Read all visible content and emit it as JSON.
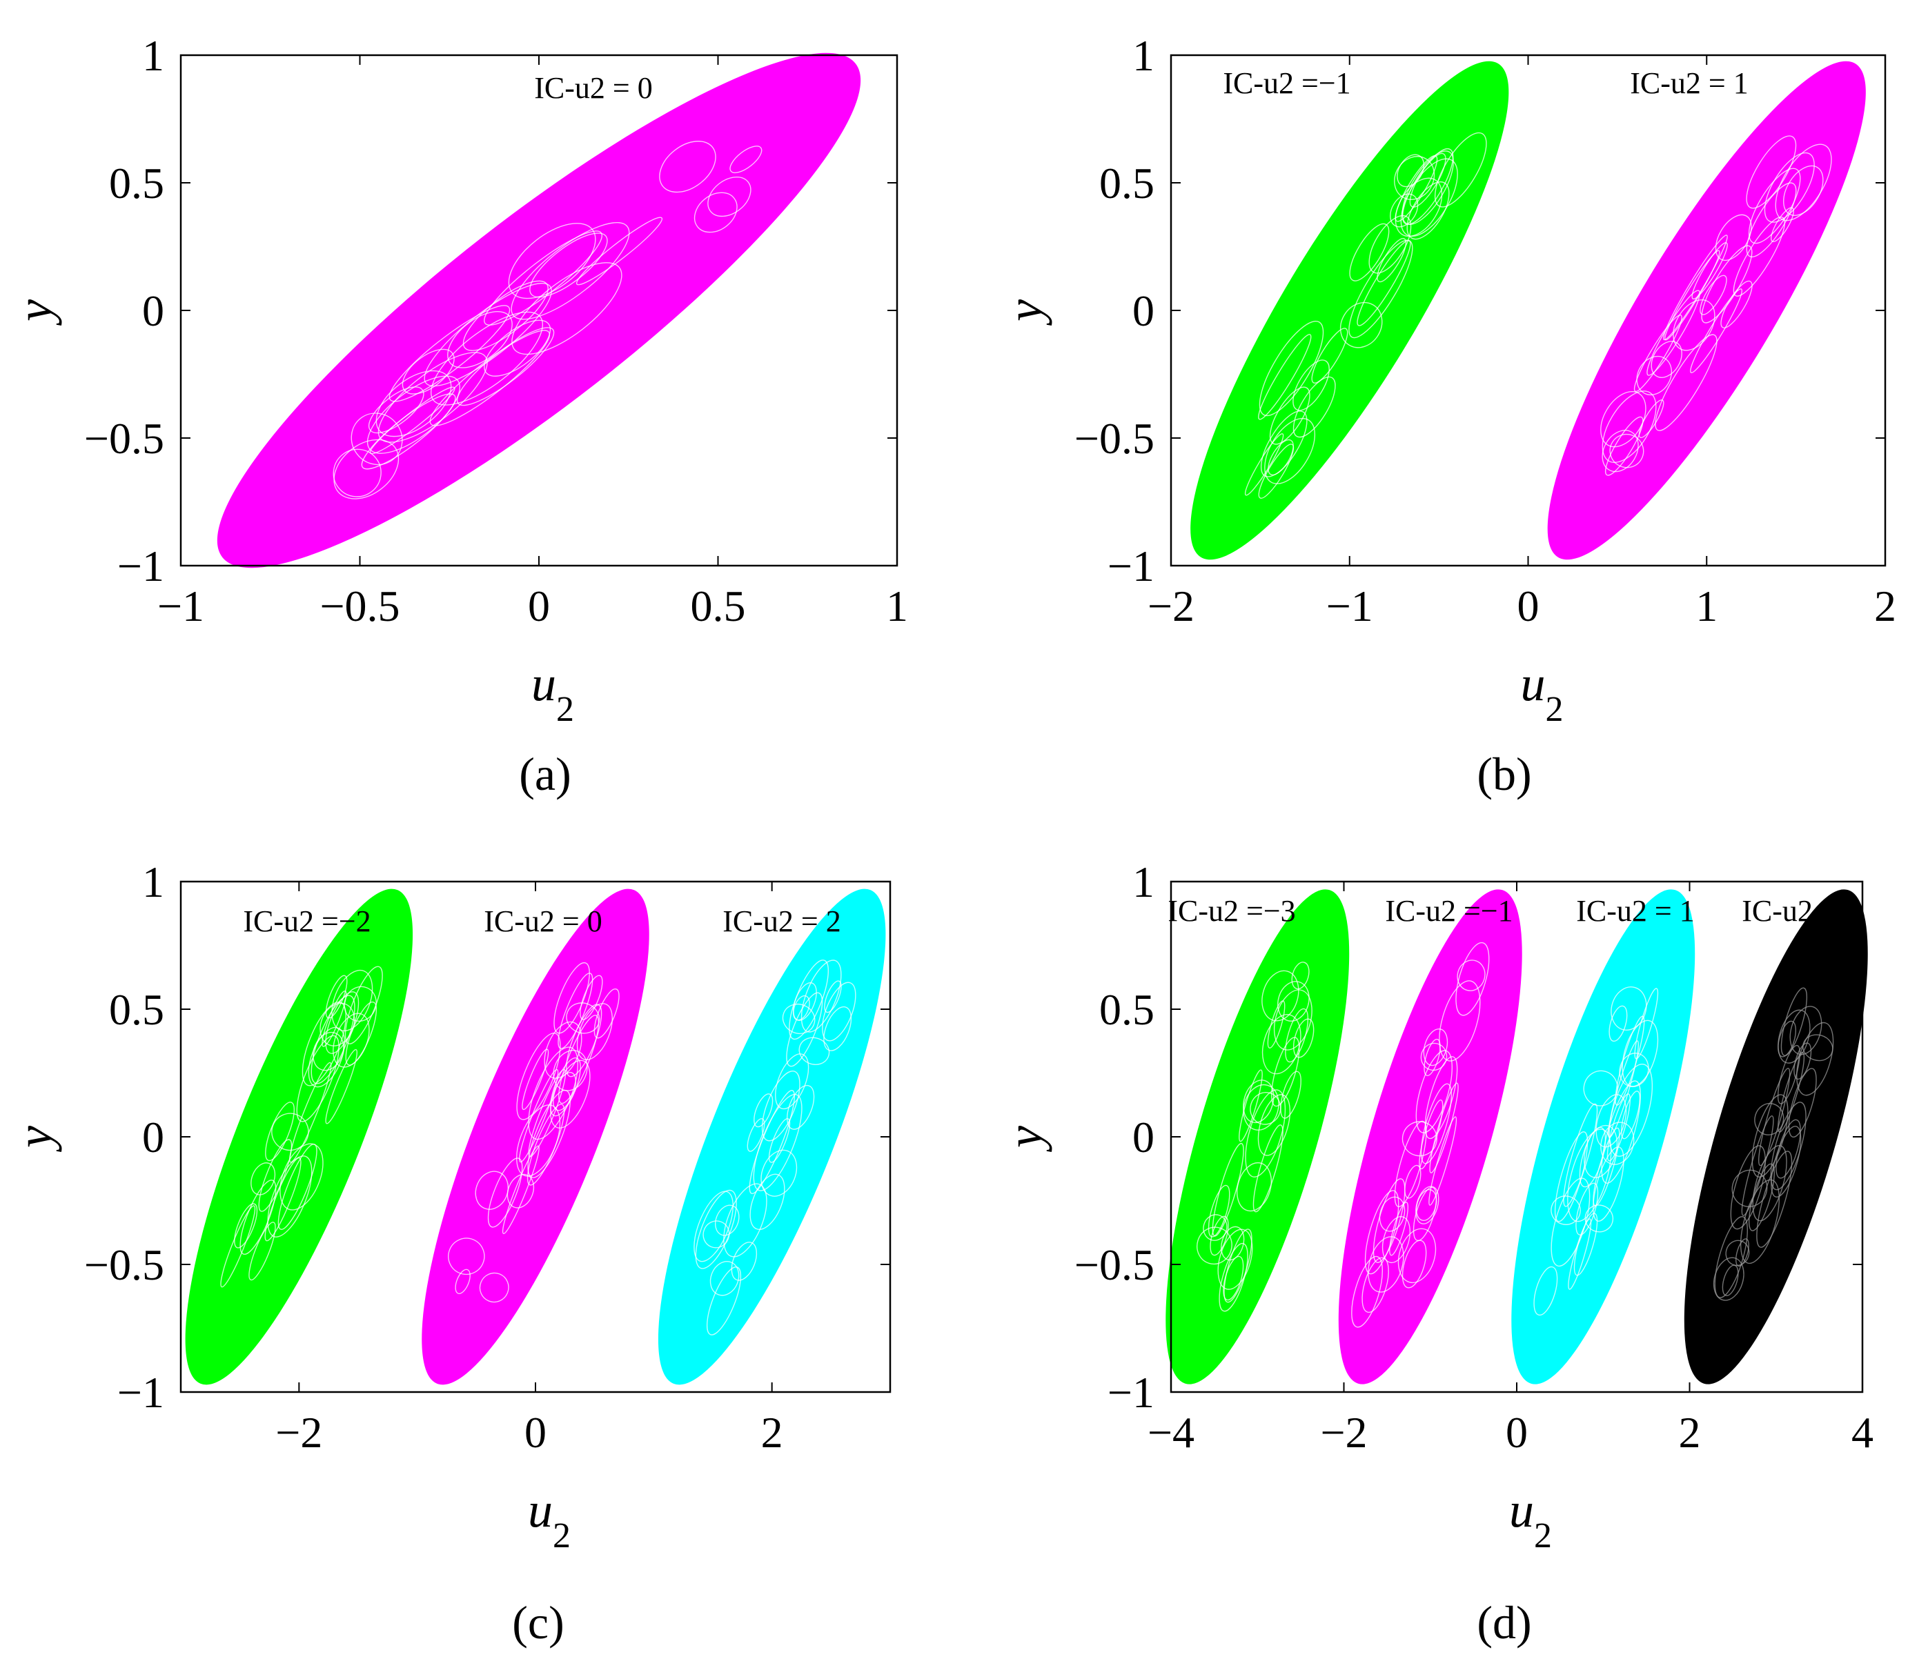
{
  "chart_data": [
    {
      "type": "scatter",
      "panel_label": "(a)",
      "xlabel": "u",
      "xlabel_sub": "2",
      "ylabel": "y",
      "xlim": [
        -1,
        1
      ],
      "ylim": [
        -1,
        1
      ],
      "xticks": [
        -1,
        -0.5,
        0,
        0.5,
        1
      ],
      "xtick_labels": [
        "−1",
        "−0.5",
        "0",
        "0.5",
        "1"
      ],
      "yticks": [
        1,
        0.5,
        0,
        -0.5,
        -1
      ],
      "ytick_labels": [
        "1",
        "0.5",
        "0",
        "−0.5",
        "−1"
      ],
      "grid": false,
      "series": [
        {
          "annotation": "IC-u2 = 0",
          "color": "#ff00ff",
          "x_range": [
            -0.85,
            0.85
          ],
          "y_range": [
            -0.93,
            0.93
          ]
        }
      ]
    },
    {
      "type": "scatter",
      "panel_label": "(b)",
      "xlabel": "u",
      "xlabel_sub": "2",
      "ylabel": "y",
      "xlim": [
        -2,
        2
      ],
      "ylim": [
        -1,
        1
      ],
      "xticks": [
        -2,
        -1,
        0,
        1,
        2
      ],
      "xtick_labels": [
        "−2",
        "−1",
        "0",
        "1",
        "2"
      ],
      "yticks": [
        1,
        0.5,
        0,
        -0.5,
        -1
      ],
      "ytick_labels": [
        "1",
        "0.5",
        "0",
        "−0.5",
        "−1"
      ],
      "grid": false,
      "series": [
        {
          "annotation": "IC-u2 =−1",
          "color": "#00ff00",
          "x_range": [
            -1.8,
            -0.2
          ],
          "y_range": [
            -0.93,
            0.93
          ]
        },
        {
          "annotation": "IC-u2 = 1",
          "color": "#ff00ff",
          "x_range": [
            0.2,
            1.8
          ],
          "y_range": [
            -0.93,
            0.93
          ]
        }
      ]
    },
    {
      "type": "scatter",
      "panel_label": "(c)",
      "xlabel": "u",
      "xlabel_sub": "2",
      "ylabel": "y",
      "xlim": [
        -3,
        3
      ],
      "ylim": [
        -1,
        1
      ],
      "xticks": [
        -2,
        0,
        2
      ],
      "xtick_labels": [
        "−2",
        "0",
        "2"
      ],
      "yticks": [
        1,
        0.5,
        0,
        -0.5,
        -1
      ],
      "ytick_labels": [
        "1",
        "0.5",
        "0",
        "−0.5",
        "−1"
      ],
      "grid": false,
      "series": [
        {
          "annotation": "IC-u2 =−2",
          "color": "#00ff00",
          "x_range": [
            -2.8,
            -1.2
          ],
          "y_range": [
            -0.93,
            0.93
          ]
        },
        {
          "annotation": "IC-u2 = 0",
          "color": "#ff00ff",
          "x_range": [
            -0.8,
            0.8
          ],
          "y_range": [
            -0.93,
            0.93
          ]
        },
        {
          "annotation": "IC-u2 = 2",
          "color": "#00ffff",
          "x_range": [
            1.2,
            2.8
          ],
          "y_range": [
            -0.93,
            0.93
          ]
        }
      ]
    },
    {
      "type": "scatter",
      "panel_label": "(d)",
      "xlabel": "u",
      "xlabel_sub": "2",
      "ylabel": "y",
      "xlim": [
        -4,
        4
      ],
      "ylim": [
        -1,
        1
      ],
      "xticks": [
        -4,
        -2,
        0,
        2,
        4
      ],
      "xtick_labels": [
        "−4",
        "−2",
        "0",
        "2",
        "4"
      ],
      "yticks": [
        1,
        0.5,
        0,
        -0.5,
        -1
      ],
      "ytick_labels": [
        "1",
        "0.5",
        "0",
        "−0.5",
        "−1"
      ],
      "grid": false,
      "series": [
        {
          "annotation": "IC-u2 =−3",
          "color": "#00ff00",
          "x_range": [
            -3.8,
            -2.2
          ],
          "y_range": [
            -0.93,
            0.93
          ]
        },
        {
          "annotation": "IC-u2 =−1",
          "color": "#ff00ff",
          "x_range": [
            -1.8,
            -0.2
          ],
          "y_range": [
            -0.93,
            0.93
          ]
        },
        {
          "annotation": "IC-u2 = 1",
          "color": "#00ffff",
          "x_range": [
            0.2,
            1.8
          ],
          "y_range": [
            -0.93,
            0.93
          ]
        },
        {
          "annotation": "IC-u2 = 3",
          "color": "#000000",
          "x_range": [
            2.2,
            3.8
          ],
          "y_range": [
            -0.93,
            0.93
          ]
        }
      ]
    }
  ]
}
